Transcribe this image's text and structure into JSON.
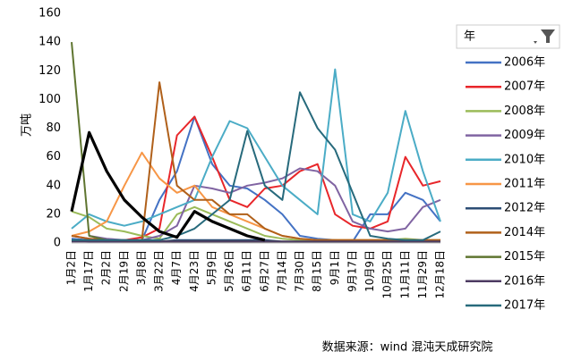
{
  "chart_data": {
    "type": "line",
    "y_label": "万吨",
    "legend_title": "年",
    "source": "数据来源：wind 混沌天成研究院",
    "categories": [
      "1月2日",
      "1月17日",
      "2月2日",
      "2月19日",
      "3月8日",
      "3月22日",
      "4月7日",
      "4月23日",
      "5月9日",
      "5月26日",
      "6月11日",
      "6月27日",
      "7月14日",
      "7月30日",
      "8月15日",
      "9月1日",
      "9月17日",
      "10月9日",
      "10月25日",
      "11月11日",
      "11月29日",
      "12月18日"
    ],
    "ylim": [
      0,
      160
    ],
    "yticks": [
      0,
      20,
      40,
      60,
      80,
      100,
      120,
      140,
      160
    ],
    "grid": false,
    "legend": "right",
    "series": [
      {
        "name": "2006年",
        "color": "#4472c4",
        "values": [
          3,
          2,
          1,
          2,
          2,
          30,
          50,
          88,
          55,
          40,
          38,
          30,
          20,
          5,
          3,
          2,
          1,
          20,
          20,
          35,
          30,
          15
        ]
      },
      {
        "name": "2007年",
        "color": "#e8262a",
        "values": [
          5,
          3,
          2,
          2,
          4,
          10,
          75,
          88,
          60,
          30,
          25,
          38,
          40,
          50,
          55,
          20,
          12,
          10,
          15,
          60,
          40,
          43
        ]
      },
      {
        "name": "2008年",
        "color": "#9bbb59",
        "values": [
          22,
          18,
          10,
          8,
          5,
          3,
          20,
          25,
          20,
          15,
          10,
          5,
          3,
          2,
          2,
          2,
          2,
          2,
          2,
          3,
          2,
          2
        ]
      },
      {
        "name": "2009年",
        "color": "#8064a2",
        "values": [
          null,
          5,
          3,
          2,
          2,
          5,
          12,
          40,
          38,
          35,
          40,
          42,
          45,
          52,
          50,
          40,
          15,
          10,
          8,
          10,
          25,
          30
        ]
      },
      {
        "name": "2010年",
        "color": "#4bacc6",
        "values": [
          10,
          20,
          15,
          12,
          15,
          20,
          25,
          30,
          60,
          85,
          80,
          60,
          40,
          30,
          20,
          121,
          20,
          15,
          35,
          92,
          50,
          15
        ]
      },
      {
        "name": "2011年",
        "color": "#f79646",
        "values": [
          5,
          8,
          15,
          40,
          63,
          45,
          35,
          40,
          25,
          20,
          15,
          10,
          5,
          3,
          2,
          2,
          2,
          2,
          2,
          2,
          2,
          2
        ]
      },
      {
        "name": "2012年",
        "color": "#2c4d75",
        "values": [
          2,
          1,
          1,
          1,
          1,
          1,
          2,
          2,
          2,
          2,
          2,
          2,
          1,
          1,
          1,
          1,
          1,
          1,
          1,
          1,
          1,
          1
        ]
      },
      {
        "name": "2014年",
        "color": "#b0601a",
        "values": [
          5,
          3,
          2,
          1,
          2,
          112,
          40,
          30,
          30,
          20,
          20,
          10,
          5,
          3,
          2,
          2,
          2,
          2,
          2,
          2,
          2,
          2
        ]
      },
      {
        "name": "2015年",
        "color": "#5f7530",
        "values": [
          140,
          5,
          2,
          1,
          1,
          1,
          1,
          1,
          1,
          1,
          1,
          1,
          1,
          1,
          1,
          1,
          1,
          1,
          1,
          1,
          1,
          1
        ]
      },
      {
        "name": "2016年",
        "color": "#4d3b62",
        "values": [
          1,
          1,
          1,
          1,
          1,
          1,
          1,
          1,
          1,
          1,
          1,
          1,
          1,
          1,
          1,
          1,
          1,
          1,
          1,
          1,
          1,
          1
        ]
      },
      {
        "name": "2017年",
        "color": "#276a7c",
        "values": [
          2,
          2,
          2,
          2,
          2,
          2,
          5,
          10,
          20,
          30,
          78,
          40,
          30,
          105,
          80,
          65,
          35,
          5,
          3,
          2,
          2,
          8
        ]
      },
      {
        "color": "#000000",
        "values": [
          22,
          77,
          50,
          30,
          18,
          8,
          4,
          22,
          15,
          10,
          5,
          2,
          null,
          null,
          null,
          null,
          null,
          null,
          null,
          null,
          null,
          null
        ]
      }
    ]
  }
}
